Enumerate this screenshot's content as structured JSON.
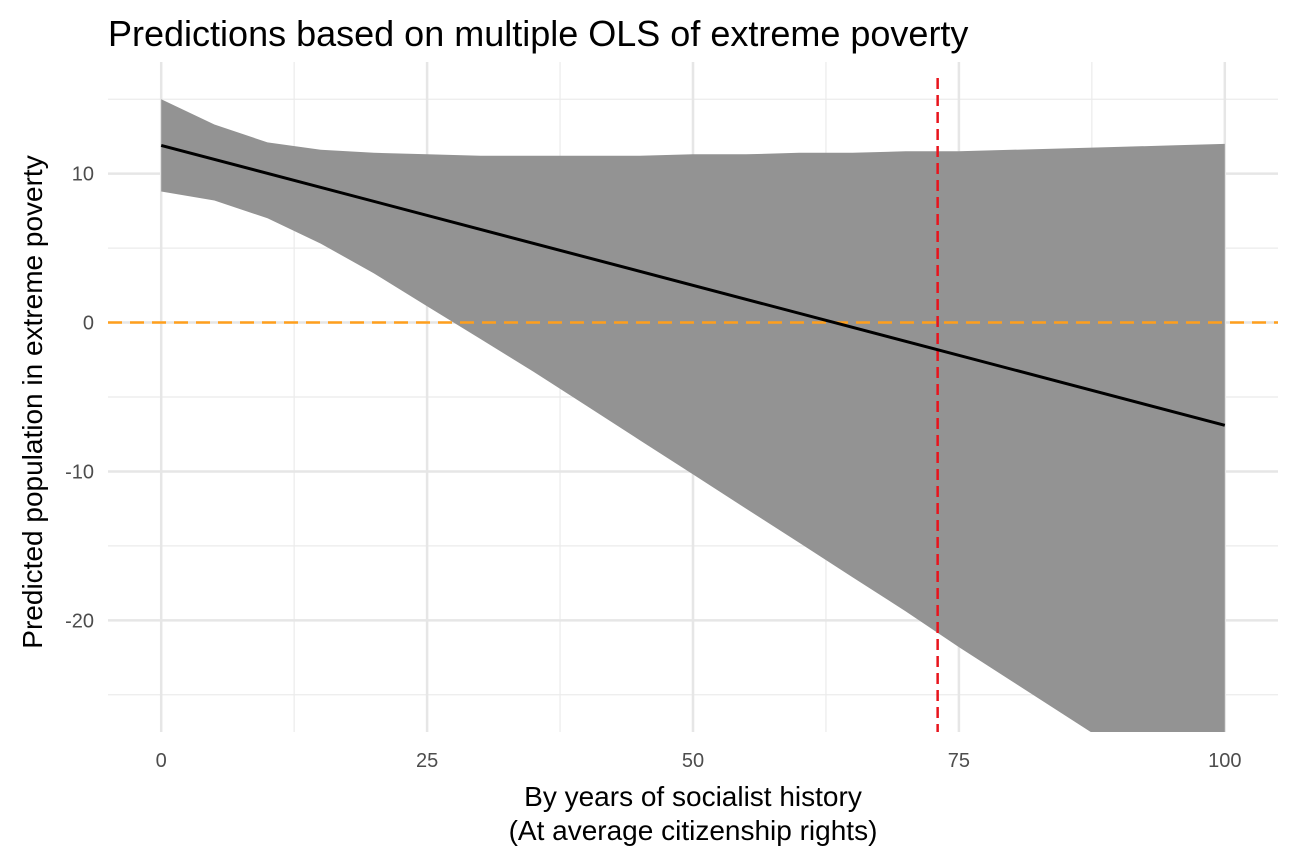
{
  "chart_data": {
    "type": "line",
    "title": "Predictions based on multiple OLS of extreme poverty",
    "xlabel_line1": "By years of socialist history",
    "xlabel_line2": "(At average citizenship rights)",
    "ylabel": "Predicted population in extreme poverty",
    "xlim": [
      -5,
      105
    ],
    "ylim": [
      -27.5,
      17.5
    ],
    "x_ticks": [
      0,
      25,
      50,
      75,
      100
    ],
    "x_tick_labels": [
      "0",
      "25",
      "50",
      "75",
      "100"
    ],
    "y_ticks": [
      -20,
      -10,
      0,
      10
    ],
    "y_tick_labels": [
      "-20",
      "-10",
      "0",
      "10"
    ],
    "grid": true,
    "series": [
      {
        "x": [
          0,
          100
        ],
        "y": [
          11.9,
          -6.9
        ]
      }
    ],
    "ribbon": {
      "x": [
        0,
        5,
        10,
        15,
        20,
        25,
        30,
        35,
        40,
        45,
        50,
        55,
        60,
        65,
        70,
        75,
        80,
        85,
        90,
        95,
        100
      ],
      "lower": [
        8.8,
        8.2,
        7.0,
        5.3,
        3.3,
        1.1,
        -1.1,
        -3.3,
        -5.6,
        -7.9,
        -10.2,
        -12.5,
        -14.8,
        -17.1,
        -19.4,
        -21.8,
        -24.1,
        -26.4,
        -28.7,
        -31.0,
        -33.3
      ],
      "upper": [
        15.0,
        13.3,
        12.1,
        11.6,
        11.4,
        11.3,
        11.2,
        11.2,
        11.2,
        11.2,
        11.3,
        11.3,
        11.4,
        11.4,
        11.5,
        11.5,
        11.6,
        11.7,
        11.8,
        11.9,
        12.0
      ],
      "color": "#939393"
    },
    "reference_lines": [
      {
        "orientation": "horizontal",
        "value": 0,
        "color": "#ff9f1c",
        "style": "dashed"
      },
      {
        "orientation": "vertical",
        "value": 73,
        "color": "#e8141c",
        "style": "dashed"
      }
    ]
  }
}
